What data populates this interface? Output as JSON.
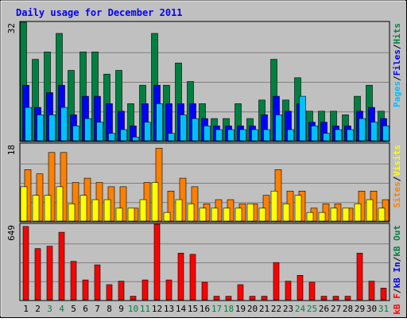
{
  "chart_data": {
    "type": "bar",
    "title": "Daily usage for December 2011",
    "categories": [
      "1",
      "2",
      "3",
      "4",
      "5",
      "6",
      "7",
      "8",
      "9",
      "10",
      "11",
      "12",
      "13",
      "14",
      "15",
      "16",
      "17",
      "18",
      "19",
      "20",
      "21",
      "22",
      "23",
      "24",
      "25",
      "26",
      "27",
      "28",
      "29",
      "30",
      "31"
    ],
    "weekend_days": [
      "3",
      "4",
      "10",
      "11",
      "17",
      "18",
      "24",
      "25",
      "31"
    ],
    "colors": {
      "background": "#ffffff",
      "frame": "#c0c0c0",
      "plot": "#c0c0c0",
      "grid": "#808080",
      "title": "#0000ff",
      "hits": "#008040",
      "files": "#0000ff",
      "pages": "#00c0ff",
      "visits": "#ffff00",
      "sites": "#ff8000",
      "kbf": "#ff0000",
      "kbin": "#0000ff",
      "kbout": "#008040",
      "weekday_label": "#000000",
      "weekend_label": "#008040"
    },
    "panels": [
      {
        "id": "top",
        "ymax_label": "32",
        "ylim": [
          0,
          32
        ],
        "legend": [
          "Pages",
          "/",
          "Files",
          "/",
          "Hits"
        ],
        "legend_colors": [
          "#00c0ff",
          "#000000",
          "#0000ff",
          "#000000",
          "#008040"
        ],
        "series": [
          {
            "name": "Hits",
            "color": "#008040",
            "values": [
              32,
              22,
              24,
              29,
              19,
              24,
              24,
              18,
              19,
              10,
              15,
              29,
              15,
              21,
              16,
              10,
              6,
              6,
              10,
              6,
              11,
              22,
              11,
              17,
              8,
              8,
              8,
              7,
              12,
              15,
              8
            ]
          },
          {
            "name": "Files",
            "color": "#0000ff",
            "values": [
              15,
              9,
              13,
              15,
              7,
              12,
              12,
              10,
              8,
              4,
              10,
              15,
              10,
              10,
              10,
              6,
              4,
              4,
              4,
              4,
              7,
              12,
              8,
              10,
              5,
              5,
              4,
              4,
              8,
              9,
              6
            ]
          },
          {
            "name": "Pages",
            "color": "#00c0ff",
            "values": [
              9,
              7,
              7,
              9,
              4,
              6,
              5,
              2,
              3,
              1,
              5,
              10,
              2,
              7,
              6,
              4,
              3,
              3,
              3,
              3,
              3,
              7,
              3,
              12,
              4,
              2,
              3,
              3,
              6,
              5,
              4
            ]
          }
        ]
      },
      {
        "id": "middle",
        "ymax_label": "18",
        "ylim": [
          0,
          18
        ],
        "legend": [
          "Sites",
          "/",
          "Visits"
        ],
        "legend_colors": [
          "#ff8000",
          "#000000",
          "#ffff00"
        ],
        "series": [
          {
            "name": "Sites",
            "color": "#ff8000",
            "values": [
              12,
              11,
              16,
              16,
              9,
              10,
              9,
              8,
              8,
              3,
              9,
              17,
              7,
              10,
              8,
              4,
              5,
              5,
              4,
              4,
              6,
              12,
              7,
              7,
              3,
              4,
              4,
              3,
              7,
              7,
              5
            ]
          },
          {
            "name": "Visits",
            "color": "#ffff00",
            "values": [
              8,
              6,
              6,
              8,
              4,
              6,
              5,
              5,
              3,
              3,
              5,
              9,
              2,
              5,
              4,
              3,
              3,
              3,
              3,
              4,
              3,
              7,
              4,
              6,
              2,
              2,
              3,
              3,
              4,
              5,
              3
            ]
          }
        ]
      },
      {
        "id": "bottom",
        "ymax_label": "649",
        "ylim": [
          0,
          649
        ],
        "legend": [
          "kB F",
          "/",
          "kB In",
          "/",
          "kB Out"
        ],
        "legend_colors": [
          "#ff0000",
          "#000000",
          "#0000ff",
          "#000000",
          "#008040"
        ],
        "series": [
          {
            "name": "kB F",
            "color": "#ff0000",
            "values": [
              630,
              440,
              460,
              580,
              330,
              170,
              300,
              130,
              160,
              30,
              170,
              649,
              170,
              400,
              390,
              150,
              30,
              30,
              130,
              30,
              30,
              320,
              160,
              210,
              150,
              30,
              30,
              30,
              400,
              160,
              100
            ]
          }
        ]
      }
    ]
  }
}
